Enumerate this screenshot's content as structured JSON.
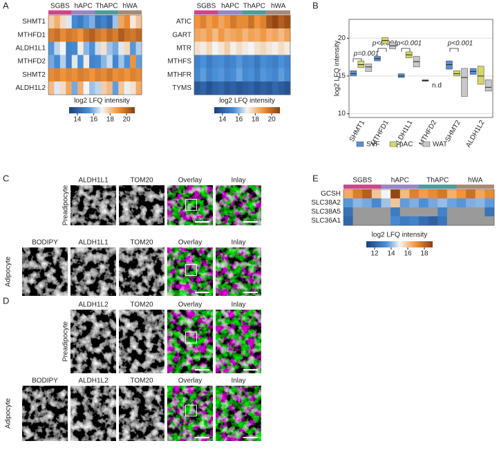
{
  "panel_labels": [
    "A",
    "B",
    "C",
    "D",
    "E"
  ],
  "panel_a": [
    {
      "groups": [
        {
          "name": "SGBS",
          "color": "#d0468a"
        },
        {
          "name": "hAPC",
          "color": "#9a86c8"
        },
        {
          "name": "ThAPC",
          "color": "#4e9c9c"
        },
        {
          "name": "hWA",
          "color": "#a88a78"
        }
      ],
      "rows": [
        {
          "name": "SHMT1",
          "values": [
            17.8,
            18.4,
            17.5,
            16.8,
            15.2,
            14.8,
            15.5,
            15.9,
            14.6,
            15.0,
            14.4,
            16.2,
            18.6,
            19.2,
            17.2,
            18.0
          ]
        },
        {
          "name": "MTHFD1",
          "values": [
            19.5,
            19.8,
            19.2,
            19.6,
            19.4,
            19.0,
            19.8,
            20.2,
            19.6,
            19.3,
            19.9,
            19.5,
            20.3,
            19.8,
            19.6,
            20.0
          ]
        },
        {
          "name": "ALDH1L1",
          "values": [
            15.5,
            16.5,
            17.0,
            15.0,
            15.2,
            17.2,
            16.0,
            15.4,
            16.6,
            17.4,
            16.2,
            15.8,
            16.8,
            17.6,
            15.5,
            16.4
          ]
        },
        {
          "name": "MTHFD2",
          "values": [
            15.8,
            15.2,
            16.4,
            15.0,
            16.8,
            15.4,
            17.2,
            15.0,
            15.2,
            16.0,
            16.6,
            15.1,
            16.2,
            15.4,
            19.0,
            15.6
          ]
        },
        {
          "name": "SHMT2",
          "values": [
            19.2,
            19.4,
            19.0,
            19.3,
            19.1,
            19.5,
            19.3,
            19.0,
            19.4,
            19.2,
            19.6,
            19.1,
            19.3,
            19.0,
            19.4,
            19.2
          ]
        },
        {
          "name": "ALDH1L2",
          "values": [
            18.2,
            16.8,
            17.5,
            18.6,
            15.8,
            18.4,
            17.0,
            16.2,
            16.5,
            17.8,
            18.2,
            15.6,
            18.0,
            16.9,
            17.4,
            18.5
          ]
        }
      ],
      "colorbar": {
        "title": "log2 LFQ intensity",
        "range": [
          13,
          21
        ],
        "ticks": [
          14,
          16,
          18,
          20
        ]
      }
    },
    {
      "groups": [
        {
          "name": "SGBS",
          "color": "#d0468a"
        },
        {
          "name": "hAPC",
          "color": "#9a86c8"
        },
        {
          "name": "ThAPC",
          "color": "#4e9c9c"
        },
        {
          "name": "hWA",
          "color": "#a88a78"
        }
      ],
      "rows": [
        {
          "name": "ATIC",
          "values": [
            19.0,
            19.4,
            18.8,
            19.2,
            18.6,
            19.0,
            19.6,
            19.2,
            19.2,
            19.8,
            19.0,
            19.4,
            20.4,
            20.8,
            20.2,
            20.6
          ]
        },
        {
          "name": "GART",
          "values": [
            18.6,
            18.4,
            18.8,
            18.2,
            18.9,
            18.4,
            18.6,
            18.8,
            18.3,
            18.7,
            18.5,
            18.9,
            18.4,
            18.6,
            18.2,
            18.7
          ]
        },
        {
          "name": "MTR",
          "values": [
            17.4,
            17.2,
            17.6,
            17.0,
            17.3,
            17.8,
            17.1,
            17.5,
            17.2,
            17.0,
            17.4,
            17.6,
            17.3,
            17.1,
            17.5,
            17.2
          ]
        },
        {
          "name": "MTHFS",
          "values": [
            15.0,
            15.4,
            14.8,
            15.2,
            15.3,
            14.9,
            15.1,
            15.5,
            15.0,
            15.2,
            14.7,
            15.3,
            15.1,
            14.9,
            15.4,
            15.0
          ]
        },
        {
          "name": "MTHFR",
          "values": [
            15.2,
            15.6,
            15.0,
            15.4,
            15.5,
            15.1,
            15.3,
            15.7,
            15.2,
            15.4,
            14.9,
            15.5,
            15.3,
            15.1,
            15.6,
            15.2
          ]
        },
        {
          "name": "TYMS",
          "values": [
            13.8,
            14.1,
            13.6,
            14.0,
            14.2,
            13.8,
            14.0,
            13.7,
            13.9,
            14.1,
            13.7,
            14.0,
            13.8,
            14.2,
            13.9,
            13.6
          ]
        }
      ],
      "colorbar": {
        "title": "log2 LFQ intensity",
        "range": [
          13,
          21
        ],
        "ticks": [
          14,
          16,
          18,
          20
        ]
      }
    }
  ],
  "panel_b": {
    "type": "box",
    "ylabel": "log2 LFQ intensity",
    "categories": [
      "SHMT1",
      "MTHFD1",
      "ALDH1L1",
      "MTHFD2",
      "SHMT2",
      "ALDH1L2"
    ],
    "ylim": [
      9.5,
      22.5
    ],
    "yticks": [
      10,
      15,
      20
    ],
    "grid": true,
    "series": [
      {
        "name": "SVF",
        "color": "#5b8fd1",
        "values": [
          15.3,
          17.3,
          15.0,
          14.4,
          16.5,
          15.6
        ],
        "q1": [
          15.0,
          17.0,
          14.8,
          14.3,
          15.9,
          15.2
        ],
        "q3": [
          15.7,
          17.6,
          15.3,
          14.5,
          17.0,
          16.0
        ]
      },
      {
        "name": "pAC",
        "color": "#d6d66a",
        "values": [
          16.5,
          19.7,
          17.8,
          null,
          15.3,
          15.0
        ],
        "q1": [
          16.1,
          19.3,
          17.4,
          null,
          15.0,
          13.9
        ],
        "q3": [
          17.0,
          20.1,
          18.2,
          null,
          15.7,
          16.3
        ]
      },
      {
        "name": "WAT",
        "color": "#c8c8c8",
        "values": [
          16.2,
          19.0,
          16.9,
          null,
          14.8,
          13.5
        ],
        "q1": [
          15.6,
          18.6,
          16.2,
          null,
          12.3,
          13.0
        ],
        "q3": [
          16.6,
          19.4,
          17.6,
          null,
          16.0,
          14.5
        ]
      }
    ],
    "annotations": [
      "p=0.001",
      "p<0.001",
      "p<0.001",
      "p<0.001",
      "n.d"
    ]
  },
  "panel_c": {
    "rows": [
      {
        "label": "Preadipocyte",
        "columns": [
          "ALDH1L1",
          "TOM20",
          "Overlay",
          "Inlay"
        ]
      },
      {
        "label": "Adipocyte",
        "columns": [
          "BODIPY",
          "ALDH1L1",
          "TOM20",
          "Overlay",
          "Inlay"
        ]
      }
    ]
  },
  "panel_d": {
    "rows": [
      {
        "label": "Preadipocyte",
        "columns": [
          "ALDH1L2",
          "TOM20",
          "Overlay",
          "Inlay"
        ]
      },
      {
        "label": "Adipocyte",
        "columns": [
          "BODIPY",
          "ALDH1L2",
          "TOM20",
          "Overlay",
          "Inlay"
        ]
      }
    ]
  },
  "panel_e": {
    "groups": [
      {
        "name": "SGBS",
        "color": "#d0468a"
      },
      {
        "name": "hAPC",
        "color": "#9a86c8"
      },
      {
        "name": "ThAPC",
        "color": "#4e9c9c"
      },
      {
        "name": "hWA",
        "color": "#a88a78"
      }
    ],
    "rows": [
      {
        "name": "GCSH",
        "values": [
          16.5,
          17.5,
          18.2,
          16.0,
          15.0,
          18.8,
          16.2,
          17.4,
          16.8,
          17.2,
          17.6,
          16.4,
          17.0,
          17.8,
          16.6,
          17.2
        ]
      },
      {
        "name": "SLC38A2",
        "values": [
          13.5,
          14.0,
          13.8,
          13.2,
          14.2,
          16.0,
          13.6,
          13.9,
          13.4,
          13.8,
          14.1,
          13.7,
          13.5,
          13.9,
          14.0,
          13.6
        ]
      },
      {
        "name": "SLC38A5",
        "values": [
          12.5,
          null,
          null,
          null,
          null,
          12.8,
          null,
          null,
          null,
          null,
          13.0,
          null,
          null,
          null,
          null,
          12.6
        ]
      },
      {
        "name": "SLC36A1",
        "values": [
          12.2,
          null,
          null,
          null,
          null,
          13.2,
          12.8,
          13.0,
          12.4,
          12.0,
          12.6,
          null,
          null,
          null,
          null,
          null
        ]
      }
    ],
    "colorbar": {
      "title": "log2 LFQ intensity",
      "range": [
        11,
        19
      ],
      "ticks": [
        12,
        14,
        16,
        18
      ]
    }
  }
}
